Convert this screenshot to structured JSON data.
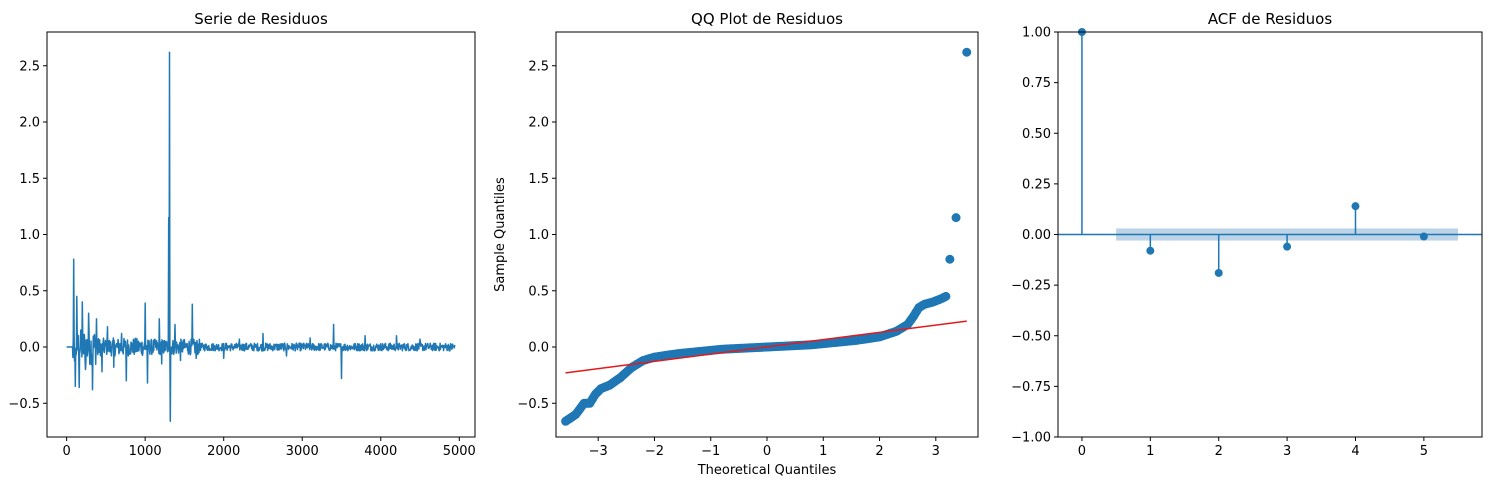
{
  "colors": {
    "series": "#1f77b4",
    "fit_line": "#e31a1c",
    "conf_band": "#a6c4e0"
  },
  "chart_data": [
    {
      "type": "line",
      "title": "Serie de Residuos",
      "xlabel": "",
      "ylabel": "",
      "xlim": [
        -250,
        5200
      ],
      "ylim": [
        -0.8,
        2.8
      ],
      "xticks": [
        0,
        1000,
        2000,
        3000,
        4000,
        5000
      ],
      "xtick_labels": [
        "0",
        "1000",
        "2000",
        "3000",
        "4000",
        "5000"
      ],
      "yticks": [
        -0.5,
        0.0,
        0.5,
        1.0,
        1.5,
        2.0,
        2.5
      ],
      "ytick_labels": [
        "−0.5",
        "0.0",
        "0.5",
        "1.0",
        "1.5",
        "2.0",
        "2.5"
      ],
      "spikes": [
        {
          "x": 90,
          "y": 0.78
        },
        {
          "x": 110,
          "y": -0.35
        },
        {
          "x": 130,
          "y": 0.45
        },
        {
          "x": 160,
          "y": -0.36
        },
        {
          "x": 200,
          "y": 0.4
        },
        {
          "x": 240,
          "y": -0.2
        },
        {
          "x": 280,
          "y": 0.3
        },
        {
          "x": 330,
          "y": -0.38
        },
        {
          "x": 380,
          "y": 0.25
        },
        {
          "x": 450,
          "y": -0.22
        },
        {
          "x": 520,
          "y": 0.18
        },
        {
          "x": 600,
          "y": -0.18
        },
        {
          "x": 700,
          "y": 0.12
        },
        {
          "x": 760,
          "y": -0.3
        },
        {
          "x": 1000,
          "y": 0.39
        },
        {
          "x": 1030,
          "y": -0.32
        },
        {
          "x": 1180,
          "y": 0.25
        },
        {
          "x": 1210,
          "y": -0.15
        },
        {
          "x": 1300,
          "y": 1.15
        },
        {
          "x": 1310,
          "y": 2.62
        },
        {
          "x": 1320,
          "y": -0.66
        },
        {
          "x": 1380,
          "y": 0.2
        },
        {
          "x": 1450,
          "y": -0.12
        },
        {
          "x": 1600,
          "y": 0.38
        },
        {
          "x": 1650,
          "y": -0.1
        },
        {
          "x": 2000,
          "y": -0.1
        },
        {
          "x": 2200,
          "y": 0.07
        },
        {
          "x": 2500,
          "y": 0.12
        },
        {
          "x": 2800,
          "y": -0.08
        },
        {
          "x": 3100,
          "y": 0.08
        },
        {
          "x": 3400,
          "y": 0.2
        },
        {
          "x": 3500,
          "y": -0.28
        },
        {
          "x": 3800,
          "y": 0.1
        },
        {
          "x": 4200,
          "y": 0.1
        },
        {
          "x": 4500,
          "y": 0.07
        }
      ],
      "n_points": 4950
    },
    {
      "type": "scatter",
      "title": "QQ Plot de Residuos",
      "xlabel": "Theoretical Quantiles",
      "ylabel": "Sample Quantiles",
      "xlim": [
        -3.75,
        3.75
      ],
      "ylim": [
        -0.8,
        2.8
      ],
      "xticks": [
        -3,
        -2,
        -1,
        0,
        1,
        2,
        3
      ],
      "xtick_labels": [
        "−3",
        "−2",
        "−1",
        "0",
        "1",
        "2",
        "3"
      ],
      "yticks": [
        -0.5,
        0.0,
        0.5,
        1.0,
        1.5,
        2.0,
        2.5
      ],
      "ytick_labels": [
        "−0.5",
        "0.0",
        "0.5",
        "1.0",
        "1.5",
        "2.0",
        "2.5"
      ],
      "curve": [
        [
          -3.58,
          -0.66
        ],
        [
          -3.4,
          -0.6
        ],
        [
          -3.25,
          -0.5
        ],
        [
          -3.15,
          -0.5
        ],
        [
          -3.05,
          -0.42
        ],
        [
          -2.95,
          -0.37
        ],
        [
          -2.8,
          -0.34
        ],
        [
          -2.6,
          -0.27
        ],
        [
          -2.4,
          -0.18
        ],
        [
          -2.2,
          -0.12
        ],
        [
          -2.0,
          -0.09
        ],
        [
          -1.6,
          -0.06
        ],
        [
          -1.2,
          -0.04
        ],
        [
          -0.8,
          -0.02
        ],
        [
          -0.4,
          -0.01
        ],
        [
          0.0,
          0.0
        ],
        [
          0.4,
          0.01
        ],
        [
          0.8,
          0.02
        ],
        [
          1.2,
          0.04
        ],
        [
          1.6,
          0.06
        ],
        [
          2.0,
          0.09
        ],
        [
          2.3,
          0.14
        ],
        [
          2.5,
          0.2
        ],
        [
          2.6,
          0.27
        ],
        [
          2.7,
          0.35
        ],
        [
          2.8,
          0.38
        ],
        [
          2.95,
          0.4
        ],
        [
          3.1,
          0.43
        ],
        [
          3.18,
          0.45
        ]
      ],
      "outliers": [
        [
          3.25,
          0.78
        ],
        [
          3.36,
          1.15
        ],
        [
          3.55,
          2.62
        ]
      ],
      "fit_line": {
        "x": [
          -3.58,
          3.55
        ],
        "y": [
          -0.23,
          0.23
        ]
      }
    },
    {
      "type": "stem",
      "title": "ACF de Residuos",
      "xlabel": "",
      "ylabel": "",
      "xlim": [
        -0.35,
        5.85
      ],
      "ylim": [
        -1.0,
        1.0
      ],
      "xticks": [
        0,
        1,
        2,
        3,
        4,
        5
      ],
      "xtick_labels": [
        "0",
        "1",
        "2",
        "3",
        "4",
        "5"
      ],
      "yticks": [
        -1.0,
        -0.75,
        -0.5,
        -0.25,
        0.0,
        0.25,
        0.5,
        0.75,
        1.0
      ],
      "ytick_labels": [
        "−1.00",
        "−0.75",
        "−0.50",
        "−0.25",
        "0.00",
        "0.25",
        "0.50",
        "0.75",
        "1.00"
      ],
      "lags": [
        0,
        1,
        2,
        3,
        4,
        5
      ],
      "values": [
        1.0,
        -0.08,
        -0.19,
        -0.06,
        0.14,
        -0.01
      ],
      "conf_band": {
        "x": [
          0.5,
          5.5
        ],
        "upper": 0.03,
        "lower": -0.03
      }
    }
  ]
}
